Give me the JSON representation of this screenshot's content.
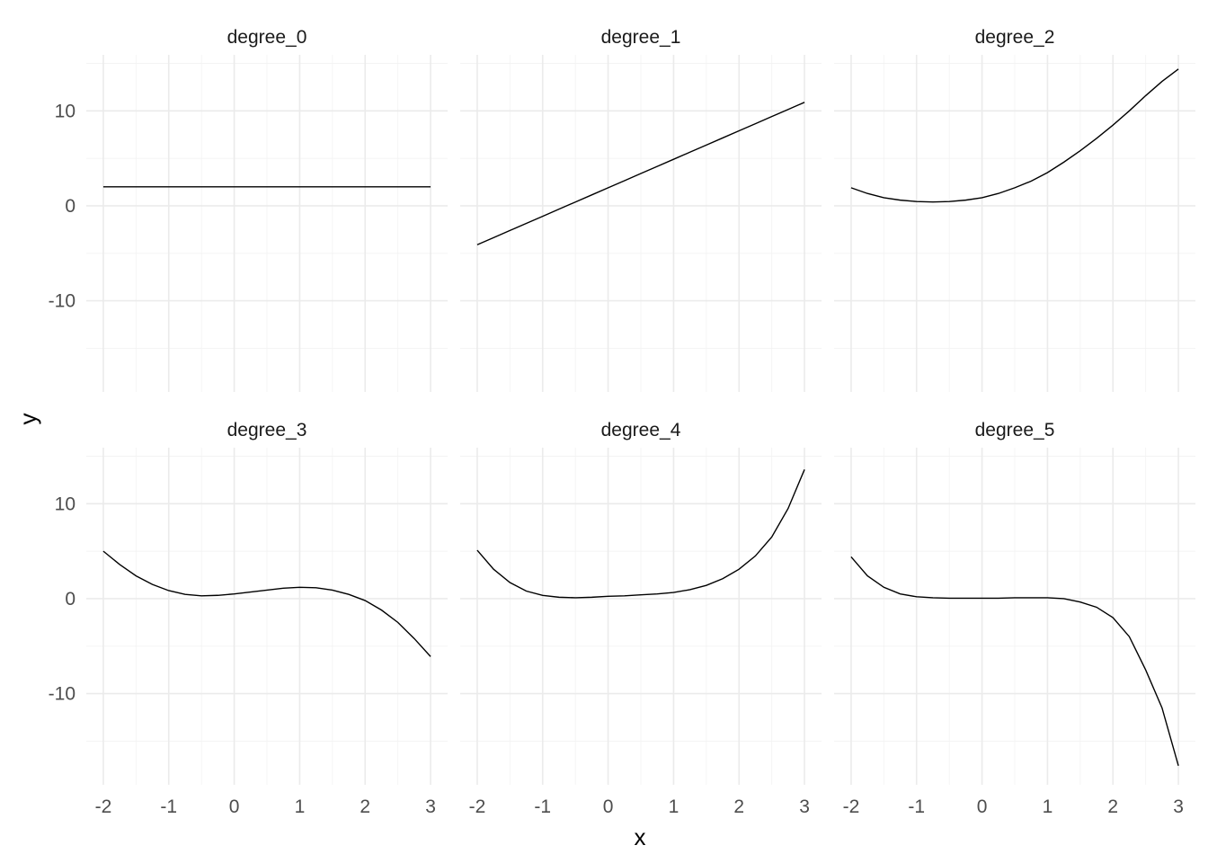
{
  "chart_data": {
    "type": "line",
    "facet_layout": "2x3",
    "xlabel": "x",
    "ylabel": "y",
    "xlim": [
      -2.26,
      3.26
    ],
    "ylim": [
      -19.6,
      15.9
    ],
    "x_ticks": [
      -2,
      -1,
      0,
      1,
      2,
      3
    ],
    "x_tick_labels": [
      "-2",
      "-1",
      "0",
      "1",
      "2",
      "3"
    ],
    "y_ticks": [
      -10,
      0,
      10
    ],
    "y_tick_labels": [
      "-10",
      "0",
      "10"
    ],
    "grid": true,
    "line_color": "#000000",
    "x": [
      -2,
      -1.75,
      -1.5,
      -1.25,
      -1,
      -0.75,
      -0.5,
      -0.25,
      0,
      0.25,
      0.5,
      0.75,
      1,
      1.25,
      1.5,
      1.75,
      2,
      2.25,
      2.5,
      2.75,
      3
    ],
    "panels": [
      {
        "name": "degree_0",
        "values": [
          2,
          2,
          2,
          2,
          2,
          2,
          2,
          2,
          2,
          2,
          2,
          2,
          2,
          2,
          2,
          2,
          2,
          2,
          2,
          2,
          2
        ]
      },
      {
        "name": "degree_1",
        "values": [
          -4.1,
          -3.35,
          -2.6,
          -1.85,
          -1.1,
          -0.35,
          0.4,
          1.15,
          1.9,
          2.65,
          3.4,
          4.15,
          4.9,
          5.65,
          6.4,
          7.15,
          7.9,
          8.65,
          9.4,
          10.15,
          10.9
        ]
      },
      {
        "name": "degree_2",
        "values": [
          1.9,
          1.3,
          0.85,
          0.6,
          0.45,
          0.4,
          0.45,
          0.6,
          0.85,
          1.3,
          1.9,
          2.6,
          3.5,
          4.6,
          5.8,
          7.1,
          8.5,
          10.0,
          11.6,
          13.1,
          14.4
        ]
      },
      {
        "name": "degree_3",
        "values": [
          5.0,
          3.6,
          2.4,
          1.5,
          0.85,
          0.45,
          0.3,
          0.35,
          0.5,
          0.7,
          0.9,
          1.1,
          1.2,
          1.15,
          0.9,
          0.45,
          -0.2,
          -1.2,
          -2.5,
          -4.2,
          -6.1
        ]
      },
      {
        "name": "degree_4",
        "values": [
          5.1,
          3.1,
          1.7,
          0.8,
          0.35,
          0.15,
          0.1,
          0.15,
          0.25,
          0.3,
          0.4,
          0.5,
          0.65,
          0.95,
          1.4,
          2.1,
          3.1,
          4.5,
          6.5,
          9.5,
          13.6
        ]
      },
      {
        "name": "degree_5",
        "values": [
          4.4,
          2.4,
          1.2,
          0.5,
          0.2,
          0.1,
          0.05,
          0.05,
          0.05,
          0.05,
          0.1,
          0.1,
          0.1,
          0.0,
          -0.35,
          -0.9,
          -2.0,
          -4.0,
          -7.5,
          -11.5,
          -17.6
        ]
      }
    ]
  }
}
